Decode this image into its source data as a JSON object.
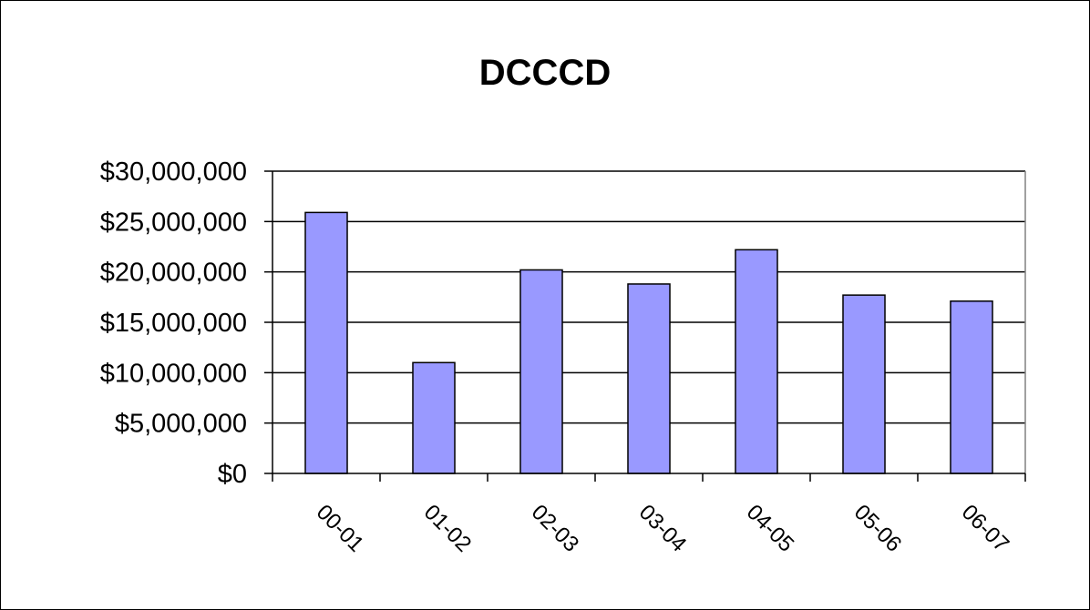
{
  "chart_data": {
    "type": "bar",
    "title": "DCCCD",
    "xlabel": "",
    "ylabel": "",
    "categories": [
      "00-01",
      "01-02",
      "02-03",
      "03-04",
      "04-05",
      "05-06",
      "06-07"
    ],
    "values": [
      25900000,
      11000000,
      20200000,
      18800000,
      22200000,
      17700000,
      17100000
    ],
    "ylim": [
      0,
      30000000
    ],
    "yticks": [
      0,
      5000000,
      10000000,
      15000000,
      20000000,
      25000000,
      30000000
    ],
    "ytick_labels": [
      "$0",
      "$5,000,000",
      "$10,000,000",
      "$15,000,000",
      "$20,000,000",
      "$25,000,000",
      "$30,000,000"
    ],
    "grid": true,
    "legend": "none",
    "colors": {
      "bar_fill": "#9999ff",
      "bar_stroke": "#000000",
      "grid": "#000000",
      "background": "#ffffff"
    }
  }
}
